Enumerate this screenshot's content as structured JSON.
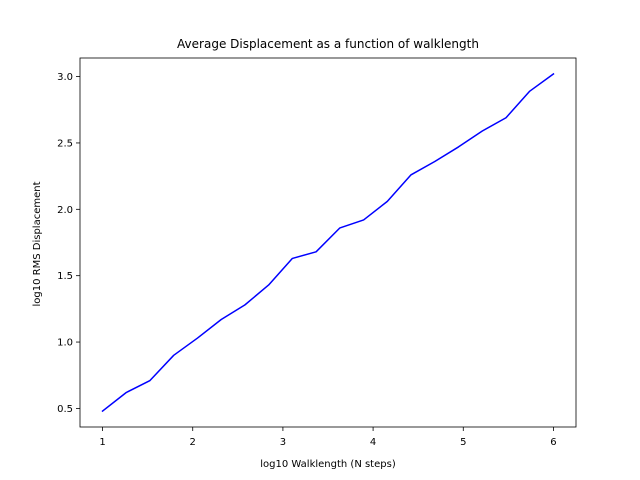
{
  "chart_data": {
    "type": "line",
    "title": "Average Displacement as a function of walklength",
    "xlabel": "log10 Walklength (N steps)",
    "ylabel": "log10 RMS Displacement",
    "xlim": [
      0.75,
      6.25
    ],
    "ylim": [
      0.36,
      3.14
    ],
    "xticks": [
      1,
      2,
      3,
      4,
      5,
      6
    ],
    "xtick_labels": [
      "1",
      "2",
      "3",
      "4",
      "5",
      "6"
    ],
    "yticks": [
      0.5,
      1.0,
      1.5,
      2.0,
      2.5,
      3.0
    ],
    "ytick_labels": [
      "0.5",
      "1.0",
      "1.5",
      "2.0",
      "2.5",
      "3.0"
    ],
    "grid": false,
    "series": [
      {
        "color": "#0000ff",
        "x": [
          1.0,
          1.263,
          1.526,
          1.789,
          2.053,
          2.316,
          2.579,
          2.842,
          3.105,
          3.368,
          3.632,
          3.895,
          4.158,
          4.421,
          4.684,
          4.947,
          5.211,
          5.474,
          5.737,
          6.0
        ],
        "y": [
          0.48,
          0.62,
          0.71,
          0.9,
          1.03,
          1.17,
          1.28,
          1.43,
          1.63,
          1.68,
          1.86,
          1.92,
          2.06,
          2.26,
          2.36,
          2.47,
          2.59,
          2.69,
          2.89,
          3.02
        ]
      }
    ]
  }
}
